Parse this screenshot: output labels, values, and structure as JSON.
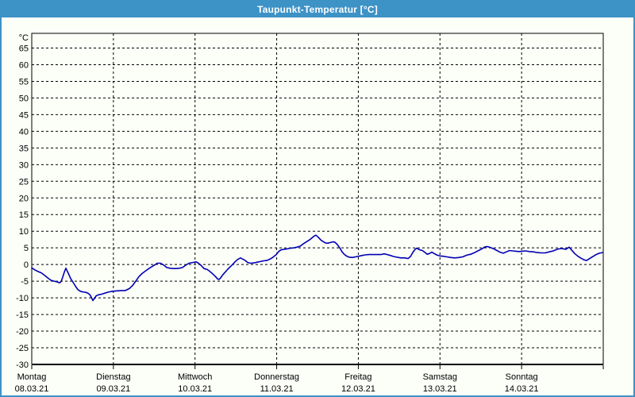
{
  "window": {
    "title": "Taupunkt-Temperatur [°C]"
  },
  "colors": {
    "titlebar": "#3d92c6",
    "window_border": "#3d92c6",
    "background": "#fcfef8",
    "grid": "#000000",
    "axis": "#000000",
    "line": "#0000b4",
    "title_text": "#ffffff"
  },
  "chart_data": {
    "type": "line",
    "title": "Taupunkt-Temperatur [°C]",
    "ylabel": "°C",
    "xlabel": "",
    "grid": "dashed",
    "legend": "none",
    "ylim": [
      -30,
      69.5
    ],
    "xlim_days": [
      0,
      7
    ],
    "y_ticks": [
      65,
      60,
      55,
      50,
      45,
      40,
      35,
      30,
      25,
      20,
      15,
      10,
      5,
      0,
      -5,
      -10,
      -15,
      -20,
      -25,
      -30
    ],
    "x_days": [
      {
        "name": "Montag",
        "date": "08.03.21"
      },
      {
        "name": "Dienstag",
        "date": "09.03.21"
      },
      {
        "name": "Mittwoch",
        "date": "10.03.21"
      },
      {
        "name": "Donnerstag",
        "date": "11.03.21"
      },
      {
        "name": "Freitag",
        "date": "12.03.21"
      },
      {
        "name": "Samstag",
        "date": "13.03.21"
      },
      {
        "name": "Sonntag",
        "date": "14.03.21"
      }
    ],
    "series": [
      {
        "name": "Taupunkt-Temperatur",
        "color": "#0000b4",
        "points": [
          [
            0.0,
            -1.0
          ],
          [
            0.039,
            -1.6
          ],
          [
            0.078,
            -2.1
          ],
          [
            0.117,
            -2.5
          ],
          [
            0.156,
            -3.2
          ],
          [
            0.194,
            -4.0
          ],
          [
            0.233,
            -4.7
          ],
          [
            0.272,
            -5.0
          ],
          [
            0.311,
            -5.2
          ],
          [
            0.34,
            -5.5
          ],
          [
            0.36,
            -5.1
          ],
          [
            0.379,
            -3.8
          ],
          [
            0.399,
            -2.3
          ],
          [
            0.418,
            -1.1
          ],
          [
            0.447,
            -2.6
          ],
          [
            0.476,
            -4.2
          ],
          [
            0.506,
            -5.3
          ],
          [
            0.535,
            -6.5
          ],
          [
            0.564,
            -7.5
          ],
          [
            0.593,
            -8.0
          ],
          [
            0.622,
            -8.2
          ],
          [
            0.651,
            -8.3
          ],
          [
            0.681,
            -8.5
          ],
          [
            0.71,
            -9.0
          ],
          [
            0.729,
            -9.8
          ],
          [
            0.749,
            -10.8
          ],
          [
            0.768,
            -10.2
          ],
          [
            0.788,
            -9.4
          ],
          [
            0.817,
            -9.1
          ],
          [
            0.856,
            -8.9
          ],
          [
            0.894,
            -8.6
          ],
          [
            0.933,
            -8.3
          ],
          [
            0.972,
            -8.1
          ],
          [
            1.001,
            -8.0
          ],
          [
            1.05,
            -7.9
          ],
          [
            1.099,
            -7.8
          ],
          [
            1.147,
            -7.8
          ],
          [
            1.196,
            -7.2
          ],
          [
            1.235,
            -6.3
          ],
          [
            1.274,
            -5.0
          ],
          [
            1.313,
            -3.6
          ],
          [
            1.351,
            -2.7
          ],
          [
            1.39,
            -2.0
          ],
          [
            1.429,
            -1.3
          ],
          [
            1.468,
            -0.7
          ],
          [
            1.507,
            -0.1
          ],
          [
            1.536,
            0.4
          ],
          [
            1.575,
            0.4
          ],
          [
            1.614,
            -0.1
          ],
          [
            1.653,
            -0.9
          ],
          [
            1.692,
            -1.1
          ],
          [
            1.731,
            -1.2
          ],
          [
            1.769,
            -1.2
          ],
          [
            1.808,
            -1.1
          ],
          [
            1.847,
            -0.9
          ],
          [
            1.886,
            -0.2
          ],
          [
            1.925,
            0.4
          ],
          [
            1.974,
            0.6
          ],
          [
            2.013,
            0.8
          ],
          [
            2.042,
            0.4
          ],
          [
            2.071,
            -0.2
          ],
          [
            2.11,
            -1.2
          ],
          [
            2.149,
            -1.5
          ],
          [
            2.178,
            -2.0
          ],
          [
            2.207,
            -2.6
          ],
          [
            2.246,
            -3.5
          ],
          [
            2.275,
            -4.3
          ],
          [
            2.294,
            -4.5
          ],
          [
            2.314,
            -4.0
          ],
          [
            2.343,
            -3.0
          ],
          [
            2.372,
            -2.2
          ],
          [
            2.401,
            -1.4
          ],
          [
            2.431,
            -0.7
          ],
          [
            2.46,
            0.0
          ],
          [
            2.489,
            0.8
          ],
          [
            2.528,
            1.6
          ],
          [
            2.557,
            2.0
          ],
          [
            2.586,
            1.6
          ],
          [
            2.615,
            1.2
          ],
          [
            2.644,
            0.6
          ],
          [
            2.683,
            0.4
          ],
          [
            2.722,
            0.5
          ],
          [
            2.761,
            0.7
          ],
          [
            2.8,
            0.9
          ],
          [
            2.839,
            1.1
          ],
          [
            2.878,
            1.2
          ],
          [
            2.917,
            1.6
          ],
          [
            2.956,
            2.2
          ],
          [
            2.994,
            3.0
          ],
          [
            3.024,
            3.9
          ],
          [
            3.053,
            4.4
          ],
          [
            3.092,
            4.6
          ],
          [
            3.131,
            4.7
          ],
          [
            3.169,
            4.9
          ],
          [
            3.208,
            5.0
          ],
          [
            3.247,
            5.2
          ],
          [
            3.286,
            5.5
          ],
          [
            3.325,
            6.2
          ],
          [
            3.364,
            6.8
          ],
          [
            3.403,
            7.4
          ],
          [
            3.432,
            8.0
          ],
          [
            3.461,
            8.6
          ],
          [
            3.481,
            8.8
          ],
          [
            3.51,
            8.2
          ],
          [
            3.539,
            7.4
          ],
          [
            3.568,
            6.9
          ],
          [
            3.597,
            6.5
          ],
          [
            3.626,
            6.4
          ],
          [
            3.656,
            6.6
          ],
          [
            3.685,
            6.8
          ],
          [
            3.714,
            6.7
          ],
          [
            3.743,
            6.0
          ],
          [
            3.772,
            5.0
          ],
          [
            3.801,
            3.8
          ],
          [
            3.831,
            3.0
          ],
          [
            3.86,
            2.5
          ],
          [
            3.889,
            2.2
          ],
          [
            3.928,
            2.1
          ],
          [
            3.967,
            2.3
          ],
          [
            4.006,
            2.5
          ],
          [
            4.044,
            2.7
          ],
          [
            4.083,
            2.9
          ],
          [
            4.132,
            3.0
          ],
          [
            4.181,
            3.0
          ],
          [
            4.229,
            3.0
          ],
          [
            4.278,
            3.0
          ],
          [
            4.317,
            3.2
          ],
          [
            4.356,
            3.0
          ],
          [
            4.394,
            2.7
          ],
          [
            4.433,
            2.4
          ],
          [
            4.472,
            2.2
          ],
          [
            4.521,
            2.0
          ],
          [
            4.569,
            2.0
          ],
          [
            4.608,
            1.8
          ],
          [
            4.638,
            2.4
          ],
          [
            4.667,
            3.6
          ],
          [
            4.696,
            4.6
          ],
          [
            4.715,
            4.9
          ],
          [
            4.744,
            4.5
          ],
          [
            4.783,
            4.2
          ],
          [
            4.813,
            3.7
          ],
          [
            4.842,
            3.1
          ],
          [
            4.871,
            3.3
          ],
          [
            4.9,
            3.7
          ],
          [
            4.929,
            3.3
          ],
          [
            4.958,
            2.9
          ],
          [
            4.997,
            2.6
          ],
          [
            5.036,
            2.5
          ],
          [
            5.085,
            2.3
          ],
          [
            5.133,
            2.1
          ],
          [
            5.182,
            2.0
          ],
          [
            5.231,
            2.1
          ],
          [
            5.279,
            2.3
          ],
          [
            5.328,
            2.8
          ],
          [
            5.376,
            3.1
          ],
          [
            5.425,
            3.6
          ],
          [
            5.474,
            4.2
          ],
          [
            5.513,
            4.7
          ],
          [
            5.551,
            5.3
          ],
          [
            5.581,
            5.4
          ],
          [
            5.619,
            5.1
          ],
          [
            5.658,
            4.7
          ],
          [
            5.697,
            4.2
          ],
          [
            5.736,
            3.7
          ],
          [
            5.775,
            3.4
          ],
          [
            5.814,
            3.8
          ],
          [
            5.853,
            4.2
          ],
          [
            5.892,
            4.1
          ],
          [
            5.931,
            4.0
          ],
          [
            5.969,
            3.9
          ],
          [
            5.999,
            4.0
          ],
          [
            6.047,
            4.1
          ],
          [
            6.096,
            3.9
          ],
          [
            6.144,
            3.8
          ],
          [
            6.193,
            3.6
          ],
          [
            6.242,
            3.5
          ],
          [
            6.29,
            3.5
          ],
          [
            6.339,
            3.8
          ],
          [
            6.388,
            4.1
          ],
          [
            6.436,
            4.6
          ],
          [
            6.485,
            4.8
          ],
          [
            6.514,
            4.7
          ],
          [
            6.543,
            4.6
          ],
          [
            6.582,
            5.2
          ],
          [
            6.611,
            4.4
          ],
          [
            6.65,
            3.3
          ],
          [
            6.689,
            2.5
          ],
          [
            6.728,
            1.9
          ],
          [
            6.767,
            1.4
          ],
          [
            6.796,
            1.2
          ],
          [
            6.835,
            1.8
          ],
          [
            6.874,
            2.4
          ],
          [
            6.913,
            3.0
          ],
          [
            6.951,
            3.4
          ],
          [
            6.99,
            3.6
          ]
        ]
      }
    ]
  }
}
